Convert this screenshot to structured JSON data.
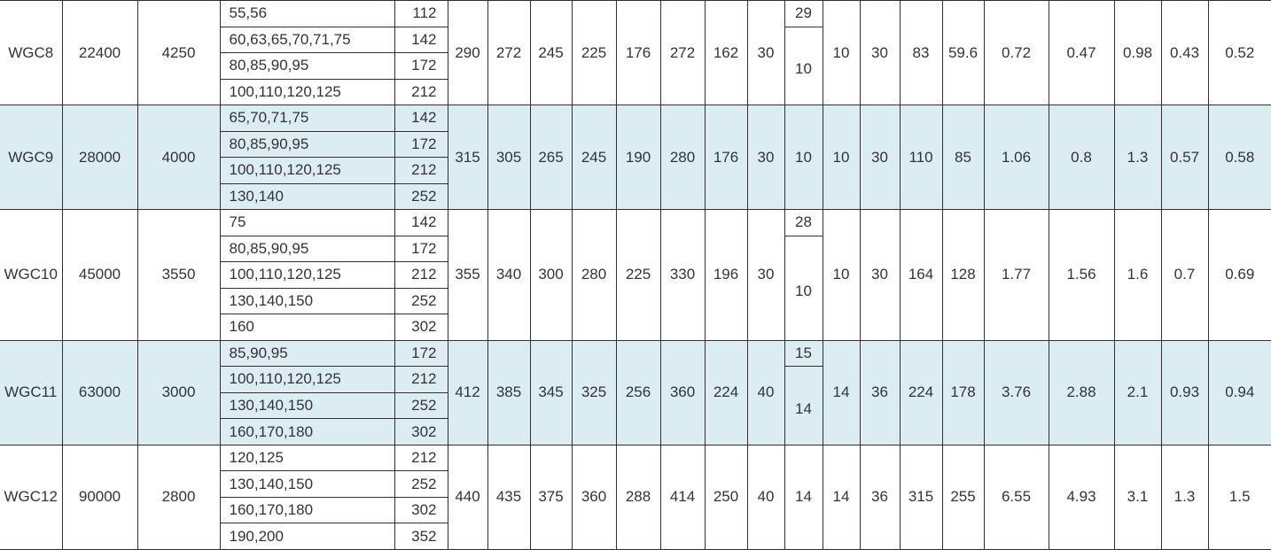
{
  "colors": {
    "shaded_row": "#dcecf3",
    "border": "#3b2b2b",
    "text": "#333333"
  },
  "rows": [
    {
      "model": "WGC8",
      "c1": "22400",
      "c2": "4250",
      "bores": [
        [
          "55,56",
          "112"
        ],
        [
          "60,63,65,70,71,75",
          "142"
        ],
        [
          "80,85,90,95",
          "172"
        ],
        [
          "100,110,120,125",
          "212"
        ]
      ],
      "dims_a": [
        "290",
        "272",
        "245",
        "225",
        "176",
        "272",
        "162",
        "30"
      ],
      "split": [
        "29",
        "10"
      ],
      "dims_b": [
        "10",
        "30",
        "83",
        "59.6",
        "0.72",
        "0.47",
        "0.98",
        "0.43",
        "0.52"
      ],
      "shaded": false
    },
    {
      "model": "WGC9",
      "c1": "28000",
      "c2": "4000",
      "bores": [
        [
          "65,70,71,75",
          "142"
        ],
        [
          "80,85,90,95",
          "172"
        ],
        [
          "100,110,120,125",
          "212"
        ],
        [
          "130,140",
          "252"
        ]
      ],
      "dims_a": [
        "315",
        "305",
        "265",
        "245",
        "190",
        "280",
        "176",
        "30"
      ],
      "split": [
        "10"
      ],
      "dims_b": [
        "10",
        "30",
        "110",
        "85",
        "1.06",
        "0.8",
        "1.3",
        "0.57",
        "0.58"
      ],
      "shaded": true
    },
    {
      "model": "WGC10",
      "c1": "45000",
      "c2": "3550",
      "bores": [
        [
          "75",
          "142"
        ],
        [
          "80,85,90,95",
          "172"
        ],
        [
          "100,110,120,125",
          "212"
        ],
        [
          "130,140,150",
          "252"
        ],
        [
          "160",
          "302"
        ]
      ],
      "dims_a": [
        "355",
        "340",
        "300",
        "280",
        "225",
        "330",
        "196",
        "30"
      ],
      "split": [
        "28",
        "10"
      ],
      "dims_b": [
        "10",
        "30",
        "164",
        "128",
        "1.77",
        "1.56",
        "1.6",
        "0.7",
        "0.69"
      ],
      "shaded": false
    },
    {
      "model": "WGC11",
      "c1": "63000",
      "c2": "3000",
      "bores": [
        [
          "85,90,95",
          "172"
        ],
        [
          "100,110,120,125",
          "212"
        ],
        [
          "130,140,150",
          "252"
        ],
        [
          "160,170,180",
          "302"
        ]
      ],
      "dims_a": [
        "412",
        "385",
        "345",
        "325",
        "256",
        "360",
        "224",
        "40"
      ],
      "split": [
        "15",
        "14"
      ],
      "dims_b": [
        "14",
        "36",
        "224",
        "178",
        "3.76",
        "2.88",
        "2.1",
        "0.93",
        "0.94"
      ],
      "shaded": true
    },
    {
      "model": "WGC12",
      "c1": "90000",
      "c2": "2800",
      "bores": [
        [
          "120,125",
          "212"
        ],
        [
          "130,140,150",
          "252"
        ],
        [
          "160,170,180",
          "302"
        ],
        [
          "190,200",
          "352"
        ]
      ],
      "dims_a": [
        "440",
        "435",
        "375",
        "360",
        "288",
        "414",
        "250",
        "40"
      ],
      "split": [
        "14"
      ],
      "dims_b": [
        "14",
        "36",
        "315",
        "255",
        "6.55",
        "4.93",
        "3.1",
        "1.3",
        "1.5"
      ],
      "shaded": false
    }
  ]
}
